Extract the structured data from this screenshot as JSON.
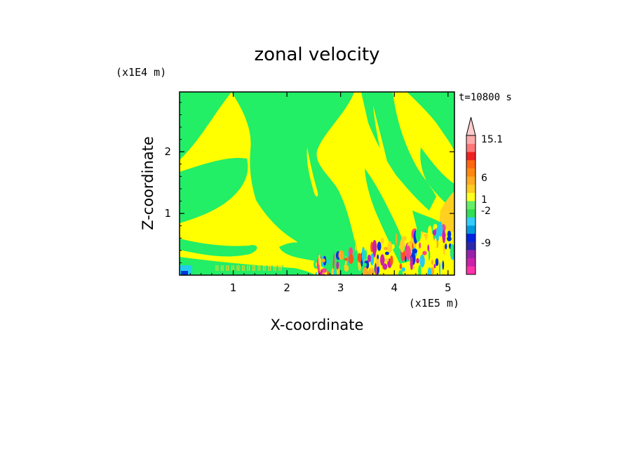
{
  "chart_data": {
    "type": "heatmap",
    "title": "zonal velocity",
    "xlabel": "X-coordinate",
    "ylabel": "Z-coordinate",
    "x_scale_label": "(x1E5 m)",
    "y_scale_label": "(x1E4 m)",
    "time_label": "t=10800 s",
    "xlim": [
      0,
      5.12
    ],
    "ylim": [
      0,
      2.97
    ],
    "x_ticks": [
      "1",
      "2",
      "3",
      "4",
      "5"
    ],
    "y_ticks": [
      "1",
      "2"
    ],
    "colorbar": {
      "labels": [
        {
          "text": "15.1",
          "value": 15.1
        },
        {
          "text": "6",
          "value": 6
        },
        {
          "text": "1",
          "value": 1
        },
        {
          "text": "-2",
          "value": -2
        },
        {
          "text": "-9",
          "value": -9
        }
      ],
      "colors": [
        "#ff33aa",
        "#cc22aa",
        "#9922aa",
        "#2a28a8",
        "#0022dd",
        "#0099dd",
        "#33ccff",
        "#33dd55",
        "#66ee66",
        "#ffff22",
        "#ffcc22",
        "#ffaa22",
        "#ff8811",
        "#ff6611",
        "#ee2222",
        "#ff7777",
        "#ffaaaa"
      ],
      "top_arrow_color": "#ffcccc"
    },
    "field_colors": {
      "background": "#ffff00",
      "negative_small": "#22ee66",
      "slightly_positive": "#ffd020",
      "moderate_positive": "#ffaa22",
      "strong_positive": "#ff5511",
      "very_strong_positive": "#ff4488",
      "slightly_negative": "#22ccee",
      "moderate_negative": "#0033dd",
      "strong_negative": "#cc22aa"
    }
  }
}
